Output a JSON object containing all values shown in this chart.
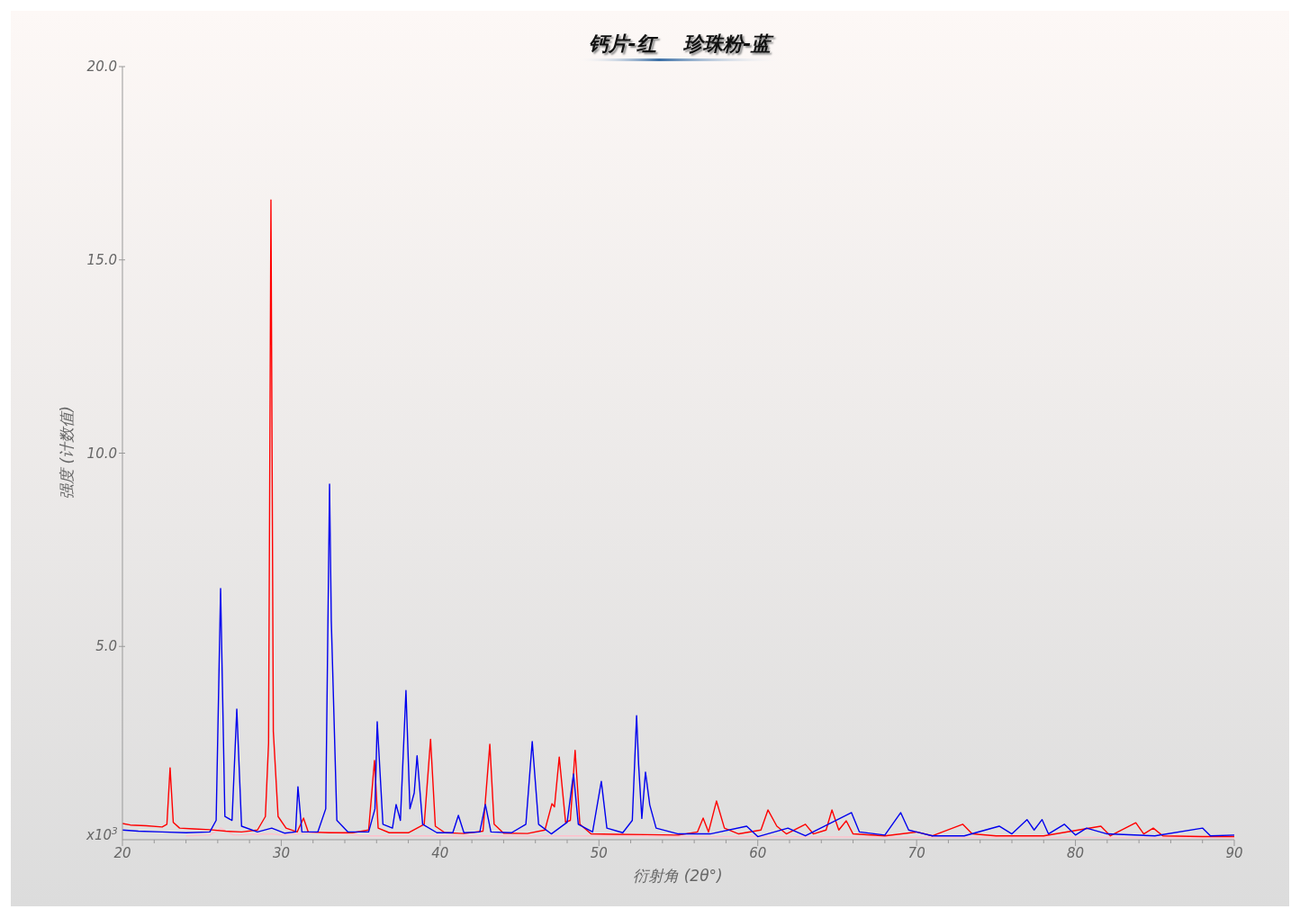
{
  "chart_data": {
    "type": "line",
    "title": "钙片-红    珍珠粉-蓝",
    "xlabel": "衍射角 (2θ°)",
    "ylabel": "强度 (计数值)",
    "annotations": [
      "x10$^{3}$"
    ],
    "xlim": [
      20,
      90
    ],
    "ylim": [
      0,
      20
    ],
    "xticks": [
      20,
      {
        "value": 22,
        "label": null
      },
      {
        "value": 24,
        "label": null
      },
      {
        "value": 26,
        "label": null
      },
      {
        "value": 28,
        "label": null
      },
      30,
      {
        "value": 32,
        "label": null
      },
      {
        "value": 34,
        "label": null
      },
      {
        "value": 36,
        "label": null
      },
      {
        "value": 38,
        "label": null
      },
      40,
      {
        "value": 42,
        "label": null
      },
      {
        "value": 44,
        "label": null
      },
      {
        "value": 46,
        "label": null
      },
      {
        "value": 48,
        "label": null
      },
      50,
      {
        "value": 52,
        "label": null
      },
      {
        "value": 54,
        "label": null
      },
      {
        "value": 56,
        "label": null
      },
      {
        "value": 58,
        "label": null
      },
      60,
      {
        "value": 62,
        "label": null
      },
      {
        "value": 64,
        "label": null
      },
      {
        "value": 66,
        "label": null
      },
      {
        "value": 68,
        "label": null
      },
      70,
      {
        "value": 72,
        "label": null
      },
      {
        "value": 74,
        "label": null
      },
      {
        "value": 76,
        "label": null
      },
      {
        "value": 78,
        "label": null
      },
      80,
      {
        "value": 82,
        "label": null
      },
      {
        "value": 84,
        "label": null
      },
      {
        "value": 86,
        "label": null
      },
      {
        "value": 88,
        "label": null
      },
      90
    ],
    "yticks": [
      {
        "value": 5,
        "label": "5.0"
      },
      {
        "value": 10,
        "label": "10.0"
      },
      {
        "value": 15,
        "label": "15.0"
      },
      {
        "value": 20,
        "label": "20.0"
      }
    ],
    "series": [
      {
        "color": "#ffc0cb",
        "x": [
          24,
          25.5,
          26.2,
          27,
          29.35,
          30,
          33,
          35,
          40,
          45,
          50,
          55,
          60,
          70,
          80,
          90
        ],
        "values": [
          0.1,
          0.12,
          0.3,
          0.12,
          0.15,
          0.12,
          0.2,
          0.1,
          0.1,
          0.1,
          0.1,
          0.08,
          0.08,
          0.06,
          0.06,
          0.05
        ]
      },
      {
        "color": "#ff0000",
        "x": [
          20,
          20.5,
          21.5,
          22.5,
          22.8,
          23.0,
          23.2,
          23.6,
          24.5,
          25.5,
          26.5,
          27.5,
          28.5,
          29.0,
          29.2,
          29.35,
          29.5,
          29.8,
          30.3,
          31.0,
          31.4,
          31.7,
          33,
          34.5,
          35.5,
          35.87,
          36.1,
          36.8,
          38.0,
          39.0,
          39.4,
          39.7,
          40.3,
          41.5,
          42.7,
          43.13,
          43.4,
          44.0,
          45.5,
          46.6,
          47.04,
          47.2,
          47.5,
          47.9,
          48.2,
          48.5,
          48.8,
          49.5,
          51,
          53,
          55,
          56.2,
          56.56,
          56.9,
          57.4,
          57.9,
          58.8,
          60.2,
          60.64,
          61.2,
          61.8,
          63.0,
          63.5,
          64.3,
          64.67,
          65.1,
          65.57,
          66,
          68,
          70,
          71,
          72.9,
          73.5,
          75,
          78,
          81.6,
          82.2,
          83.8,
          84.3,
          84.9,
          85.5,
          88,
          90
        ],
        "values": [
          0.42,
          0.38,
          0.36,
          0.33,
          0.4,
          1.86,
          0.45,
          0.3,
          0.28,
          0.26,
          0.22,
          0.2,
          0.25,
          0.6,
          2.5,
          16.55,
          2.8,
          0.6,
          0.3,
          0.2,
          0.56,
          0.2,
          0.18,
          0.18,
          0.25,
          2.05,
          0.3,
          0.18,
          0.18,
          0.4,
          2.6,
          0.35,
          0.18,
          0.16,
          0.22,
          2.47,
          0.4,
          0.17,
          0.16,
          0.25,
          0.93,
          0.85,
          2.14,
          0.45,
          0.5,
          2.31,
          0.4,
          0.15,
          0.14,
          0.13,
          0.12,
          0.2,
          0.56,
          0.2,
          1.0,
          0.3,
          0.15,
          0.25,
          0.77,
          0.35,
          0.15,
          0.4,
          0.15,
          0.25,
          0.77,
          0.25,
          0.49,
          0.15,
          0.1,
          0.2,
          0.1,
          0.4,
          0.15,
          0.1,
          0.1,
          0.35,
          0.1,
          0.44,
          0.15,
          0.3,
          0.1,
          0.08,
          0.08
        ]
      },
      {
        "color": "#0000ee",
        "x": [
          20,
          21,
          22.5,
          24,
          25.5,
          25.9,
          26.18,
          26.45,
          26.9,
          27.2,
          27.5,
          28.5,
          29.4,
          30.2,
          30.9,
          31.05,
          31.3,
          32.3,
          32.8,
          33.04,
          33.15,
          33.5,
          34.2,
          35.5,
          35.9,
          36.04,
          36.4,
          37.0,
          37.23,
          37.5,
          37.85,
          38.1,
          38.37,
          38.55,
          38.9,
          39.8,
          40.8,
          41.15,
          41.5,
          42.5,
          42.85,
          43.2,
          44.5,
          45.4,
          45.8,
          46.2,
          47.0,
          48.0,
          48.3,
          48.4,
          48.7,
          49.6,
          50.15,
          50.5,
          51.5,
          52.1,
          52.37,
          52.5,
          52.7,
          52.93,
          53.2,
          53.6,
          55,
          57,
          59.3,
          60,
          61.9,
          63,
          65.9,
          66.4,
          68,
          69.0,
          69.5,
          71,
          73,
          75.2,
          76,
          76.95,
          77.4,
          77.9,
          78.3,
          79.3,
          80,
          80.7,
          82,
          85,
          88.0,
          88.5,
          90
        ],
        "values": [
          0.25,
          0.22,
          0.2,
          0.18,
          0.2,
          0.5,
          6.5,
          0.6,
          0.5,
          3.38,
          0.35,
          0.2,
          0.3,
          0.17,
          0.2,
          1.37,
          0.2,
          0.2,
          0.8,
          9.2,
          5.66,
          0.5,
          0.2,
          0.2,
          0.8,
          3.05,
          0.4,
          0.3,
          0.91,
          0.5,
          3.86,
          0.8,
          1.21,
          2.17,
          0.4,
          0.18,
          0.18,
          0.63,
          0.18,
          0.2,
          0.91,
          0.2,
          0.18,
          0.4,
          2.54,
          0.4,
          0.15,
          0.45,
          1.4,
          1.7,
          0.4,
          0.2,
          1.51,
          0.3,
          0.18,
          0.5,
          3.21,
          1.93,
          0.55,
          1.75,
          0.9,
          0.3,
          0.15,
          0.15,
          0.35,
          0.08,
          0.3,
          0.1,
          0.7,
          0.2,
          0.12,
          0.7,
          0.25,
          0.1,
          0.1,
          0.35,
          0.15,
          0.52,
          0.25,
          0.52,
          0.15,
          0.4,
          0.12,
          0.3,
          0.15,
          0.1,
          0.3,
          0.1,
          0.12
        ]
      }
    ]
  }
}
